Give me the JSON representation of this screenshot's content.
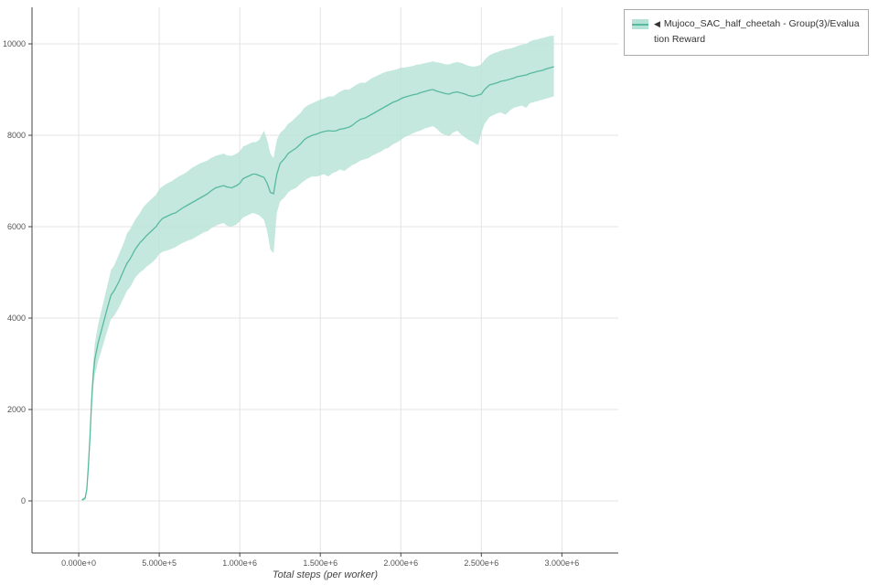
{
  "colors": {
    "band": "#b5e2d6",
    "line": "#57b99e",
    "grid": "#e3e3e3",
    "axis": "#444444",
    "tick_text": "#555555",
    "label_text": "#444444"
  },
  "legend": {
    "collapse_icon": "◀",
    "label": "Mujoco_SAC_half_cheetah - Group(3)/Evaluation Reward"
  },
  "chart_data": {
    "type": "line",
    "title": "",
    "xlabel": "Total steps (per worker)",
    "ylabel": "",
    "grid": true,
    "legend_position": "top-right",
    "xlim": [
      -290000,
      3350000
    ],
    "ylim": [
      -1140,
      10800
    ],
    "x_ticks": [
      {
        "value": 0,
        "label": "0.000e+0"
      },
      {
        "value": 500000,
        "label": "5.000e+5"
      },
      {
        "value": 1000000,
        "label": "1.000e+6"
      },
      {
        "value": 1500000,
        "label": "1.500e+6"
      },
      {
        "value": 2000000,
        "label": "2.000e+6"
      },
      {
        "value": 2500000,
        "label": "2.500e+6"
      },
      {
        "value": 3000000,
        "label": "3.000e+6"
      }
    ],
    "y_ticks": [
      {
        "value": 0,
        "label": "0"
      },
      {
        "value": 2000,
        "label": "2000"
      },
      {
        "value": 4000,
        "label": "4000"
      },
      {
        "value": 6000,
        "label": "6000"
      },
      {
        "value": 8000,
        "label": "8000"
      },
      {
        "value": 10000,
        "label": "10000"
      }
    ],
    "series": [
      {
        "name": "Mujoco_SAC_half_cheetah - Group(3)/Evaluation Reward",
        "x": [
          20000,
          40000,
          50000,
          60000,
          70000,
          80000,
          90000,
          100000,
          120000,
          150000,
          180000,
          200000,
          220000,
          250000,
          280000,
          300000,
          320000,
          350000,
          380000,
          400000,
          420000,
          450000,
          480000,
          500000,
          520000,
          550000,
          580000,
          600000,
          620000,
          650000,
          680000,
          700000,
          720000,
          750000,
          780000,
          800000,
          820000,
          850000,
          880000,
          900000,
          920000,
          950000,
          980000,
          1000000,
          1020000,
          1050000,
          1080000,
          1100000,
          1120000,
          1150000,
          1170000,
          1190000,
          1210000,
          1230000,
          1250000,
          1280000,
          1300000,
          1320000,
          1350000,
          1380000,
          1400000,
          1420000,
          1450000,
          1480000,
          1500000,
          1520000,
          1550000,
          1580000,
          1600000,
          1620000,
          1650000,
          1680000,
          1700000,
          1720000,
          1750000,
          1780000,
          1800000,
          1820000,
          1850000,
          1880000,
          1900000,
          1920000,
          1950000,
          1980000,
          2000000,
          2020000,
          2050000,
          2080000,
          2100000,
          2120000,
          2150000,
          2180000,
          2200000,
          2220000,
          2250000,
          2280000,
          2300000,
          2320000,
          2350000,
          2380000,
          2400000,
          2420000,
          2450000,
          2480000,
          2500000,
          2520000,
          2550000,
          2580000,
          2600000,
          2620000,
          2650000,
          2680000,
          2700000,
          2720000,
          2750000,
          2780000,
          2800000,
          2820000,
          2850000,
          2880000,
          2900000,
          2920000,
          2950000
        ],
        "mean": [
          20,
          60,
          250,
          750,
          1400,
          2200,
          2750,
          3100,
          3450,
          3850,
          4250,
          4500,
          4600,
          4800,
          5050,
          5200,
          5300,
          5500,
          5650,
          5720,
          5800,
          5900,
          6000,
          6100,
          6180,
          6230,
          6280,
          6300,
          6350,
          6420,
          6480,
          6520,
          6560,
          6620,
          6680,
          6720,
          6780,
          6850,
          6880,
          6900,
          6870,
          6850,
          6900,
          6950,
          7050,
          7100,
          7150,
          7150,
          7120,
          7080,
          6950,
          6750,
          6720,
          7150,
          7380,
          7500,
          7600,
          7650,
          7720,
          7820,
          7900,
          7950,
          8000,
          8030,
          8060,
          8080,
          8100,
          8090,
          8100,
          8130,
          8150,
          8180,
          8220,
          8280,
          8350,
          8380,
          8420,
          8460,
          8520,
          8580,
          8620,
          8660,
          8720,
          8760,
          8800,
          8830,
          8860,
          8890,
          8900,
          8930,
          8960,
          8990,
          9000,
          8970,
          8940,
          8910,
          8900,
          8930,
          8950,
          8920,
          8900,
          8870,
          8850,
          8880,
          8900,
          9000,
          9100,
          9130,
          9150,
          9180,
          9200,
          9230,
          9250,
          9280,
          9300,
          9320,
          9350,
          9370,
          9400,
          9420,
          9450,
          9470,
          9500
        ],
        "lower": [
          0,
          20,
          180,
          620,
          1200,
          1950,
          2480,
          2750,
          3050,
          3400,
          3750,
          3980,
          4050,
          4230,
          4450,
          4600,
          4680,
          4880,
          5000,
          5050,
          5120,
          5200,
          5300,
          5400,
          5450,
          5480,
          5520,
          5550,
          5600,
          5650,
          5700,
          5720,
          5760,
          5820,
          5880,
          5900,
          5960,
          6020,
          6060,
          6080,
          6020,
          6000,
          6050,
          6120,
          6200,
          6250,
          6300,
          6280,
          6250,
          6150,
          5900,
          5500,
          5420,
          6300,
          6550,
          6650,
          6750,
          6800,
          6850,
          6950,
          7000,
          7050,
          7100,
          7100,
          7120,
          7150,
          7100,
          7180,
          7200,
          7250,
          7220,
          7300,
          7350,
          7380,
          7450,
          7480,
          7500,
          7550,
          7600,
          7650,
          7700,
          7720,
          7800,
          7850,
          7900,
          7950,
          8000,
          8050,
          8080,
          8100,
          8150,
          8180,
          8200,
          8150,
          8050,
          8000,
          7980,
          8050,
          8100,
          8000,
          7950,
          7900,
          7850,
          7780,
          8050,
          8250,
          8400,
          8450,
          8480,
          8500,
          8450,
          8550,
          8600,
          8620,
          8650,
          8600,
          8700,
          8720,
          8750,
          8780,
          8800,
          8820,
          8850
        ],
        "upper": [
          40,
          100,
          320,
          880,
          1600,
          2450,
          3020,
          3450,
          3850,
          4300,
          4750,
          5050,
          5150,
          5400,
          5650,
          5850,
          5950,
          6150,
          6300,
          6420,
          6500,
          6600,
          6700,
          6820,
          6880,
          6950,
          7000,
          7050,
          7100,
          7150,
          7220,
          7280,
          7320,
          7380,
          7420,
          7450,
          7500,
          7550,
          7580,
          7600,
          7560,
          7550,
          7600,
          7650,
          7750,
          7800,
          7850,
          7850,
          7900,
          8100,
          7900,
          7600,
          7500,
          7900,
          8050,
          8150,
          8250,
          8300,
          8400,
          8500,
          8600,
          8650,
          8700,
          8750,
          8780,
          8800,
          8850,
          8850,
          8900,
          8950,
          9000,
          9000,
          9050,
          9100,
          9150,
          9150,
          9200,
          9250,
          9300,
          9350,
          9380,
          9400,
          9420,
          9450,
          9480,
          9480,
          9500,
          9520,
          9550,
          9550,
          9580,
          9600,
          9620,
          9600,
          9580,
          9550,
          9550,
          9580,
          9600,
          9580,
          9550,
          9520,
          9500,
          9520,
          9550,
          9650,
          9750,
          9800,
          9820,
          9850,
          9880,
          9900,
          9920,
          9950,
          9980,
          10000,
          10050,
          10080,
          10100,
          10130,
          10150,
          10170,
          10180
        ]
      }
    ]
  }
}
